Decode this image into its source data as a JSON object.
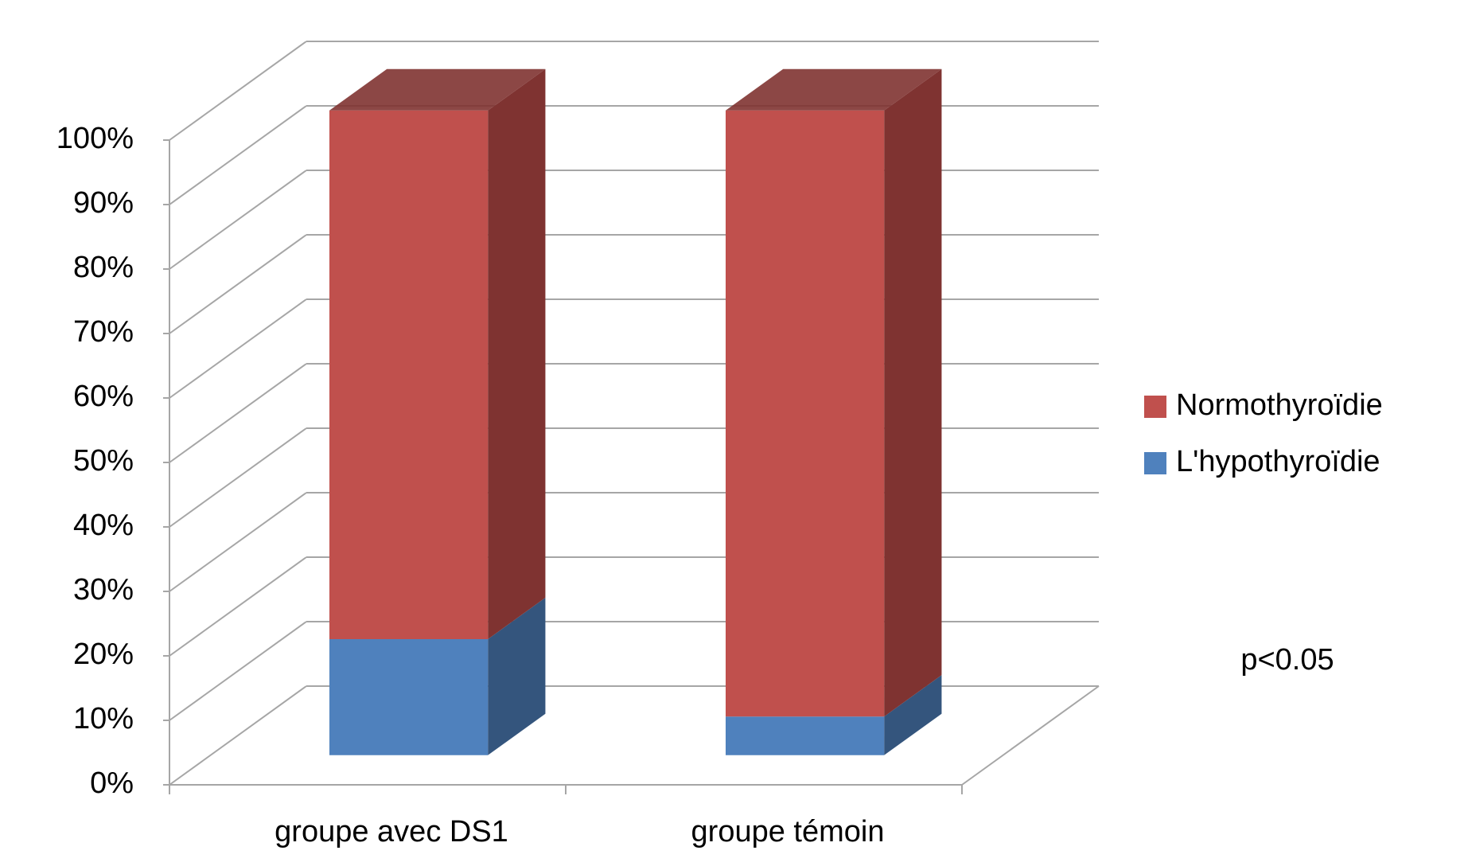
{
  "chart_data": {
    "type": "bar3d_stacked",
    "categories": [
      "groupe avec DS1",
      "groupe témoin"
    ],
    "series": [
      {
        "name": "Normothyroïdie",
        "color": "#c0504d",
        "side_color": "#7f3331",
        "values": [
          82,
          94
        ]
      },
      {
        "name": "L'hypothyroïdie",
        "color": "#4f81bd",
        "side_color": "#34557d",
        "values": [
          18,
          6
        ]
      }
    ],
    "ylim": [
      0,
      100
    ],
    "yticks": [
      {
        "value": 0,
        "label": "0%"
      },
      {
        "value": 10,
        "label": "10%"
      },
      {
        "value": 20,
        "label": "20%"
      },
      {
        "value": 30,
        "label": "30%"
      },
      {
        "value": 40,
        "label": "40%"
      },
      {
        "value": 50,
        "label": "50%"
      },
      {
        "value": 60,
        "label": "60%"
      },
      {
        "value": 70,
        "label": "70%"
      },
      {
        "value": 80,
        "label": "80%"
      },
      {
        "value": 90,
        "label": "90%"
      },
      {
        "value": 100,
        "label": "100%"
      }
    ],
    "grid": true,
    "legend": "right",
    "annotation": "p<0.05"
  }
}
